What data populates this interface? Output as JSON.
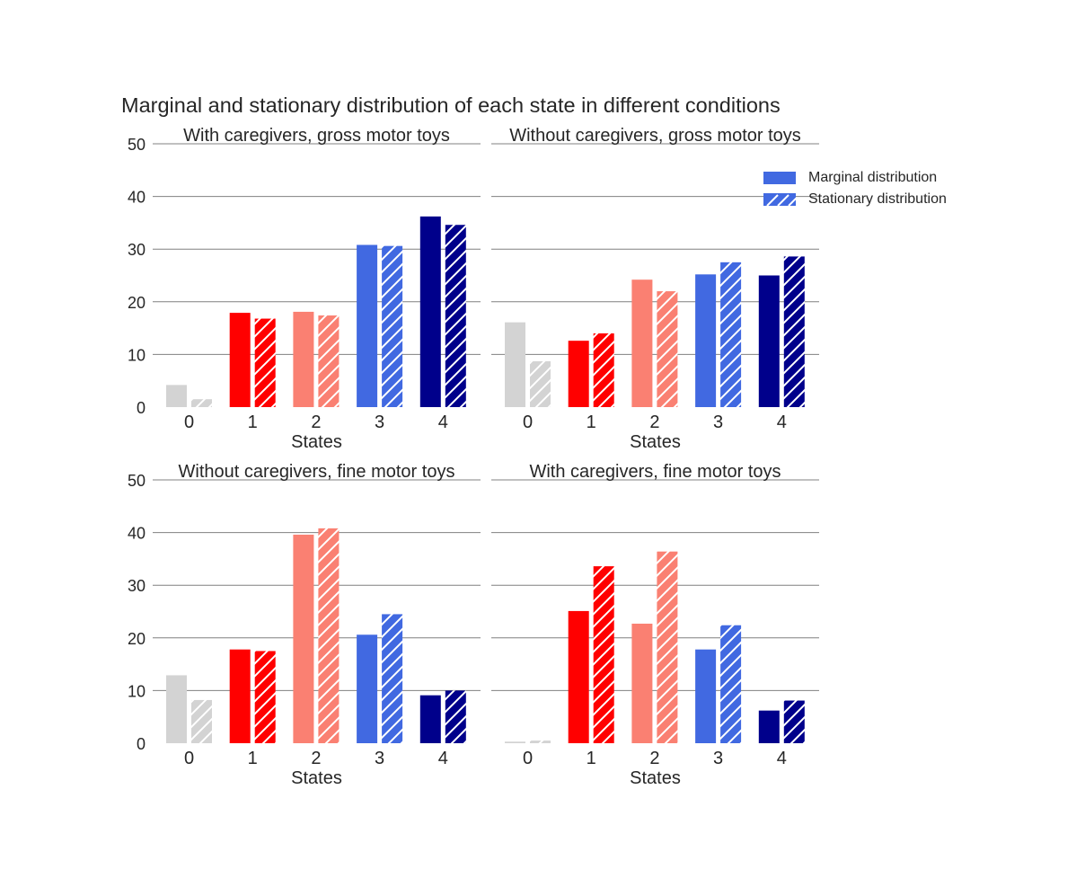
{
  "suptitle": "Marginal and stationary distribution of each state in different conditions",
  "legend": {
    "placement": "top-right",
    "items": [
      {
        "label": "Marginal distribution",
        "pattern": "solid"
      },
      {
        "label": "Stationary distribution",
        "pattern": "hatched"
      }
    ]
  },
  "colors": {
    "state_0": "#d3d3d3",
    "state_1": "#ff0000",
    "state_2": "#fa8072",
    "state_3": "#4169e1",
    "state_4": "#00008b",
    "grid": "#808080",
    "text": "#262626"
  },
  "chart_data": [
    {
      "type": "bar",
      "title": "With caregivers, gross motor toys",
      "xlabel": "States",
      "ylabel": "",
      "categories": [
        "0",
        "1",
        "2",
        "3",
        "4"
      ],
      "series": [
        {
          "name": "Marginal distribution",
          "values": [
            4.2,
            17.9,
            18.1,
            30.8,
            36.2
          ]
        },
        {
          "name": "Stationary distribution",
          "values": [
            1.5,
            16.8,
            17.4,
            30.6,
            34.6
          ]
        }
      ],
      "ylim": [
        0,
        50
      ],
      "yticks": [
        "0",
        "10",
        "20",
        "30",
        "40",
        "50"
      ],
      "grid": true
    },
    {
      "type": "bar",
      "title": "Without caregivers, gross motor toys",
      "xlabel": "States",
      "ylabel": "",
      "categories": [
        "0",
        "1",
        "2",
        "3",
        "4"
      ],
      "series": [
        {
          "name": "Marginal distribution",
          "values": [
            16.1,
            12.6,
            24.2,
            25.2,
            25.0
          ]
        },
        {
          "name": "Stationary distribution",
          "values": [
            8.7,
            14.0,
            22.0,
            27.5,
            28.6
          ]
        }
      ],
      "ylim": [
        0,
        50
      ],
      "yticks": [],
      "grid": true
    },
    {
      "type": "bar",
      "title": "Without caregivers, fine motor toys",
      "xlabel": "States",
      "ylabel": "",
      "categories": [
        "0",
        "1",
        "2",
        "3",
        "4"
      ],
      "series": [
        {
          "name": "Marginal distribution",
          "values": [
            12.9,
            17.8,
            39.6,
            20.6,
            9.1
          ]
        },
        {
          "name": "Stationary distribution",
          "values": [
            8.2,
            17.5,
            40.8,
            24.5,
            10.0
          ]
        }
      ],
      "ylim": [
        0,
        50
      ],
      "yticks": [
        "0",
        "10",
        "20",
        "30",
        "40",
        "50"
      ],
      "grid": true
    },
    {
      "type": "bar",
      "title": "With caregivers, fine motor toys",
      "xlabel": "States",
      "ylabel": "",
      "categories": [
        "0",
        "1",
        "2",
        "3",
        "4"
      ],
      "series": [
        {
          "name": "Marginal distribution",
          "values": [
            0.3,
            25.1,
            22.7,
            17.8,
            6.2
          ]
        },
        {
          "name": "Stationary distribution",
          "values": [
            0.5,
            33.6,
            36.4,
            22.4,
            8.1
          ]
        }
      ],
      "ylim": [
        0,
        50
      ],
      "yticks": [],
      "grid": true
    }
  ]
}
